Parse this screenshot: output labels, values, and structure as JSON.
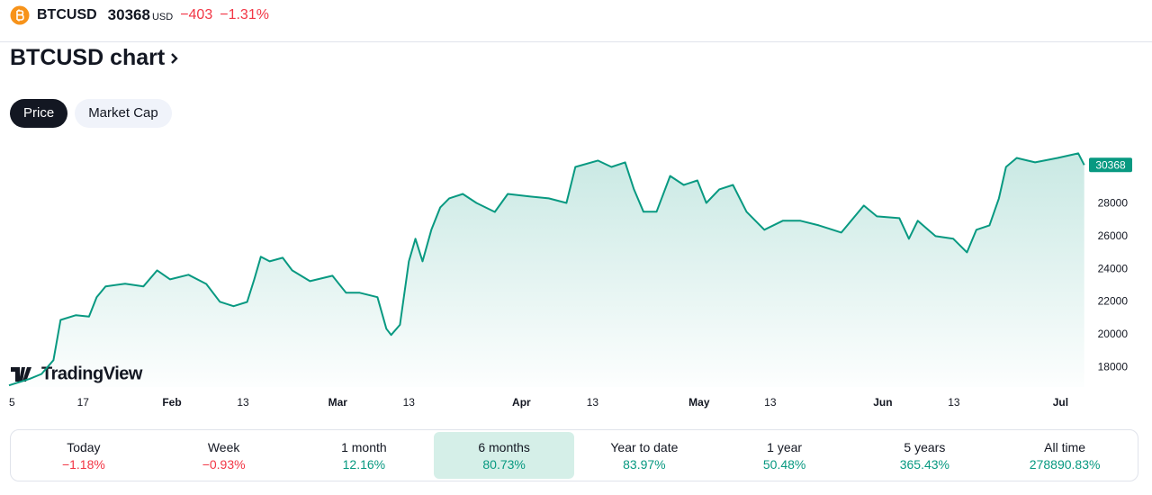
{
  "header": {
    "symbol": "BTCUSD",
    "price": "30368",
    "currency": "USD",
    "change": "−403",
    "change_pct": "−1.31%"
  },
  "title": "BTCUSD chart",
  "tabs": [
    "Price",
    "Market Cap"
  ],
  "active_tab": 0,
  "branding": "TradingView",
  "chart_data": {
    "type": "line",
    "color": "#089981",
    "x": [
      3.5,
      5,
      7,
      9,
      11,
      12.2,
      14.8,
      17,
      18.3,
      19.8,
      23.1,
      26.2,
      28.5,
      30.7,
      33.8,
      36.8,
      39.1,
      41.4,
      43.7,
      44.9,
      46,
      47.5,
      49.7,
      51.3,
      54.3,
      58.1,
      60.4,
      62.7,
      65.7,
      67.2,
      68,
      69.5,
      71,
      72.1,
      73.3,
      74.8,
      76.3,
      77.8,
      80.1,
      82.4,
      85.5,
      87.7,
      91.5,
      94.6,
      97.6,
      99.1,
      102.9,
      105.2,
      107.5,
      109,
      110.6,
      112.8,
      115.1,
      117.4,
      119.7,
      121.2,
      123.4,
      125.7,
      128,
      131,
      134.1,
      137.1,
      140.2,
      144,
      147.8,
      150,
      153.8,
      155.4,
      156.9,
      159.9,
      162.9,
      165.2,
      166.8,
      169,
      170.6,
      171.8,
      173.6,
      176.7,
      180.5,
      184,
      185
    ],
    "values": [
      16900,
      17070,
      17300,
      17600,
      18440,
      20900,
      21190,
      21100,
      22290,
      22950,
      23110,
      22950,
      23930,
      23380,
      23660,
      23100,
      22010,
      21740,
      22000,
      23380,
      24760,
      24480,
      24700,
      23930,
      23270,
      23600,
      22560,
      22560,
      22290,
      20360,
      19980,
      20600,
      24480,
      25860,
      24480,
      26410,
      27780,
      28330,
      28600,
      28050,
      27500,
      28600,
      28440,
      28330,
      28050,
      30250,
      30640,
      30250,
      30530,
      28880,
      27510,
      27510,
      29700,
      29150,
      29420,
      28050,
      28880,
      29150,
      27510,
      26410,
      26960,
      26960,
      26680,
      26240,
      27890,
      27230,
      27120,
      25860,
      26960,
      26020,
      25860,
      25030,
      26410,
      26680,
      28330,
      30250,
      30800,
      30530,
      30800,
      31080,
      30368
    ],
    "xlim": [
      3.5,
      185.5
    ],
    "xticks": [
      {
        "value": 4,
        "label": "5"
      },
      {
        "value": 16,
        "label": "17"
      },
      {
        "value": 31,
        "label": "Feb"
      },
      {
        "value": 43,
        "label": "13"
      },
      {
        "value": 59,
        "label": "Mar"
      },
      {
        "value": 71,
        "label": "13"
      },
      {
        "value": 90,
        "label": "Apr"
      },
      {
        "value": 102,
        "label": "13"
      },
      {
        "value": 120,
        "label": "May"
      },
      {
        "value": 132,
        "label": "13"
      },
      {
        "value": 151,
        "label": "Jun"
      },
      {
        "value": 163,
        "label": "13"
      },
      {
        "value": 181,
        "label": "Jul"
      }
    ],
    "ylim": [
      16800,
      32200
    ],
    "yticks": [
      18000,
      20000,
      22000,
      24000,
      26000,
      28000
    ]
  },
  "periods": [
    {
      "label": "Today",
      "change": "−1.18%"
    },
    {
      "label": "Week",
      "change": "−0.93%"
    },
    {
      "label": "1 month",
      "change": "12.16%"
    },
    {
      "label": "6 months",
      "change": "80.73%"
    },
    {
      "label": "Year to date",
      "change": "83.97%"
    },
    {
      "label": "1 year",
      "change": "50.48%"
    },
    {
      "label": "5 years",
      "change": "365.43%"
    },
    {
      "label": "All time",
      "change": "278890.83%"
    }
  ],
  "active_period": 3
}
